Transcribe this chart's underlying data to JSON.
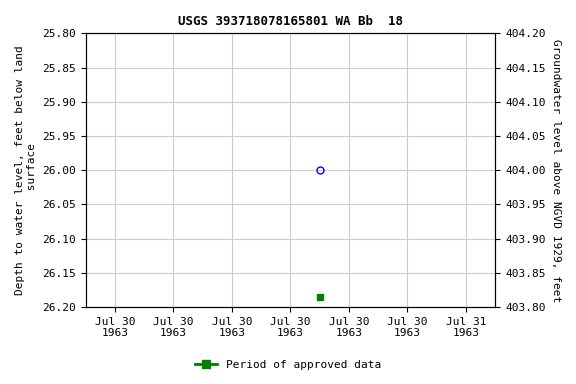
{
  "title": "USGS 393718078165801 WA Bb  18",
  "ylabel_left": "Depth to water level, feet below land\n surface",
  "ylabel_right": "Groundwater level above NGVD 1929, feet",
  "ylim_left": [
    25.8,
    26.2
  ],
  "ylim_right": [
    403.8,
    404.2
  ],
  "y_ticks_left": [
    25.8,
    25.85,
    25.9,
    25.95,
    26.0,
    26.05,
    26.1,
    26.15,
    26.2
  ],
  "y_ticks_right": [
    403.8,
    403.85,
    403.9,
    403.95,
    404.0,
    404.05,
    404.1,
    404.15,
    404.2
  ],
  "data_point_x_num": 3.5,
  "data_point_y": 26.0,
  "data_point_color": "blue",
  "data_point_marker": "o",
  "approved_point_x_num": 3.5,
  "approved_point_y": 26.185,
  "approved_point_color": "#008000",
  "approved_point_marker": "s",
  "approved_point_size": 4,
  "background_color": "#ffffff",
  "grid_color": "#cccccc",
  "tick_label_fontsize": 8,
  "axis_label_fontsize": 8,
  "title_fontsize": 9,
  "legend_label": "Period of approved data",
  "legend_color": "#008000",
  "x_tick_positions": [
    0,
    1,
    2,
    3,
    4,
    5,
    6
  ],
  "x_tick_labels": [
    "Jul 30\n1963",
    "Jul 30\n1963",
    "Jul 30\n1963",
    "Jul 30\n1963",
    "Jul 30\n1963",
    "Jul 30\n1963",
    "Jul 31\n1963"
  ],
  "x_min": -0.5,
  "x_max": 6.5
}
